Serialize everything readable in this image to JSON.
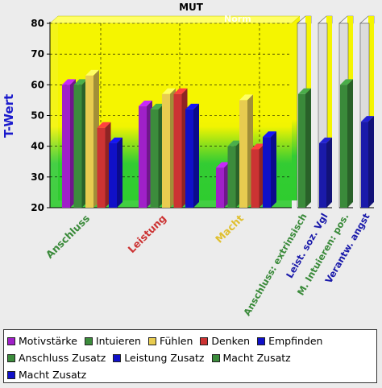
{
  "chart_data": {
    "type": "bar",
    "title": "MUT",
    "ylabel": "T-Wert",
    "xlabel": "",
    "ylim": [
      20,
      80
    ],
    "yticks": [
      "20",
      "30",
      "40",
      "50",
      "60",
      "70",
      "80"
    ],
    "grid": true,
    "background_band_label": "Norm",
    "groups": [
      {
        "label": "Anschluss",
        "color": "#3a8a3a",
        "bars": [
          {
            "series": "Motivstärke",
            "value": 60
          },
          {
            "series": "Intuieren",
            "value": 60
          },
          {
            "series": "Fühlen",
            "value": 63
          },
          {
            "series": "Denken",
            "value": 46
          },
          {
            "series": "Empfinden",
            "value": 41
          }
        ]
      },
      {
        "label": "Leistung",
        "color": "#cc3333",
        "bars": [
          {
            "series": "Motivstärke",
            "value": 53
          },
          {
            "series": "Intuieren",
            "value": 52
          },
          {
            "series": "Fühlen",
            "value": 57
          },
          {
            "series": "Denken",
            "value": 57
          },
          {
            "series": "Empfinden",
            "value": 52
          }
        ]
      },
      {
        "label": "Macht",
        "color": "#e0c030",
        "bars": [
          {
            "series": "Motivstärke",
            "value": 33
          },
          {
            "series": "Intuieren",
            "value": 40
          },
          {
            "series": "Fühlen",
            "value": 55
          },
          {
            "series": "Denken",
            "value": 39
          },
          {
            "series": "Empfinden",
            "value": 43
          }
        ]
      }
    ],
    "extra_bars": [
      {
        "label": "Anschluss: extrinsisch",
        "series": "Anschluss Zusatz",
        "value": 57,
        "color": "#3a8a3a"
      },
      {
        "label": "Leist. soz. Vgl",
        "series": "Leistung Zusatz",
        "value": 41,
        "color": "#1a1aaa"
      },
      {
        "label": "M. Intuieren: pos.",
        "series": "Macht Zusatz",
        "value": 60,
        "color": "#3a8a3a"
      },
      {
        "label": "Verantw. angst",
        "series": "Macht Zusatz",
        "value": 48,
        "color": "#1a1aaa"
      }
    ],
    "series_colors": {
      "Motivstärke": "#a020c8",
      "Intuieren": "#3c8c3c",
      "Fühlen": "#e8cc50",
      "Denken": "#cc3333",
      "Empfinden": "#1010c8",
      "Anschluss Zusatz": "#3c8c3c",
      "Leistung Zusatz": "#1010c8",
      "Macht Zusatz": "#3c8c3c",
      "Macht Zusatz 2": "#1010c8"
    },
    "legend": {
      "placement": "bottom",
      "rows": [
        [
          {
            "label": "Motivstärke",
            "color": "#a020c8"
          },
          {
            "label": "Intuieren",
            "color": "#3c8c3c"
          },
          {
            "label": "Fühlen",
            "color": "#e8cc50"
          },
          {
            "label": "Denken",
            "color": "#cc3333"
          },
          {
            "label": "Empfinden",
            "color": "#1010c8"
          }
        ],
        [
          {
            "label": "Anschluss Zusatz",
            "color": "#3c8c3c"
          },
          {
            "label": "Leistung Zusatz",
            "color": "#1010c8"
          },
          {
            "label": "Macht Zusatz",
            "color": "#3c8c3c"
          }
        ],
        [
          {
            "label": "Macht Zusatz",
            "color": "#1010c8"
          }
        ]
      ]
    }
  }
}
